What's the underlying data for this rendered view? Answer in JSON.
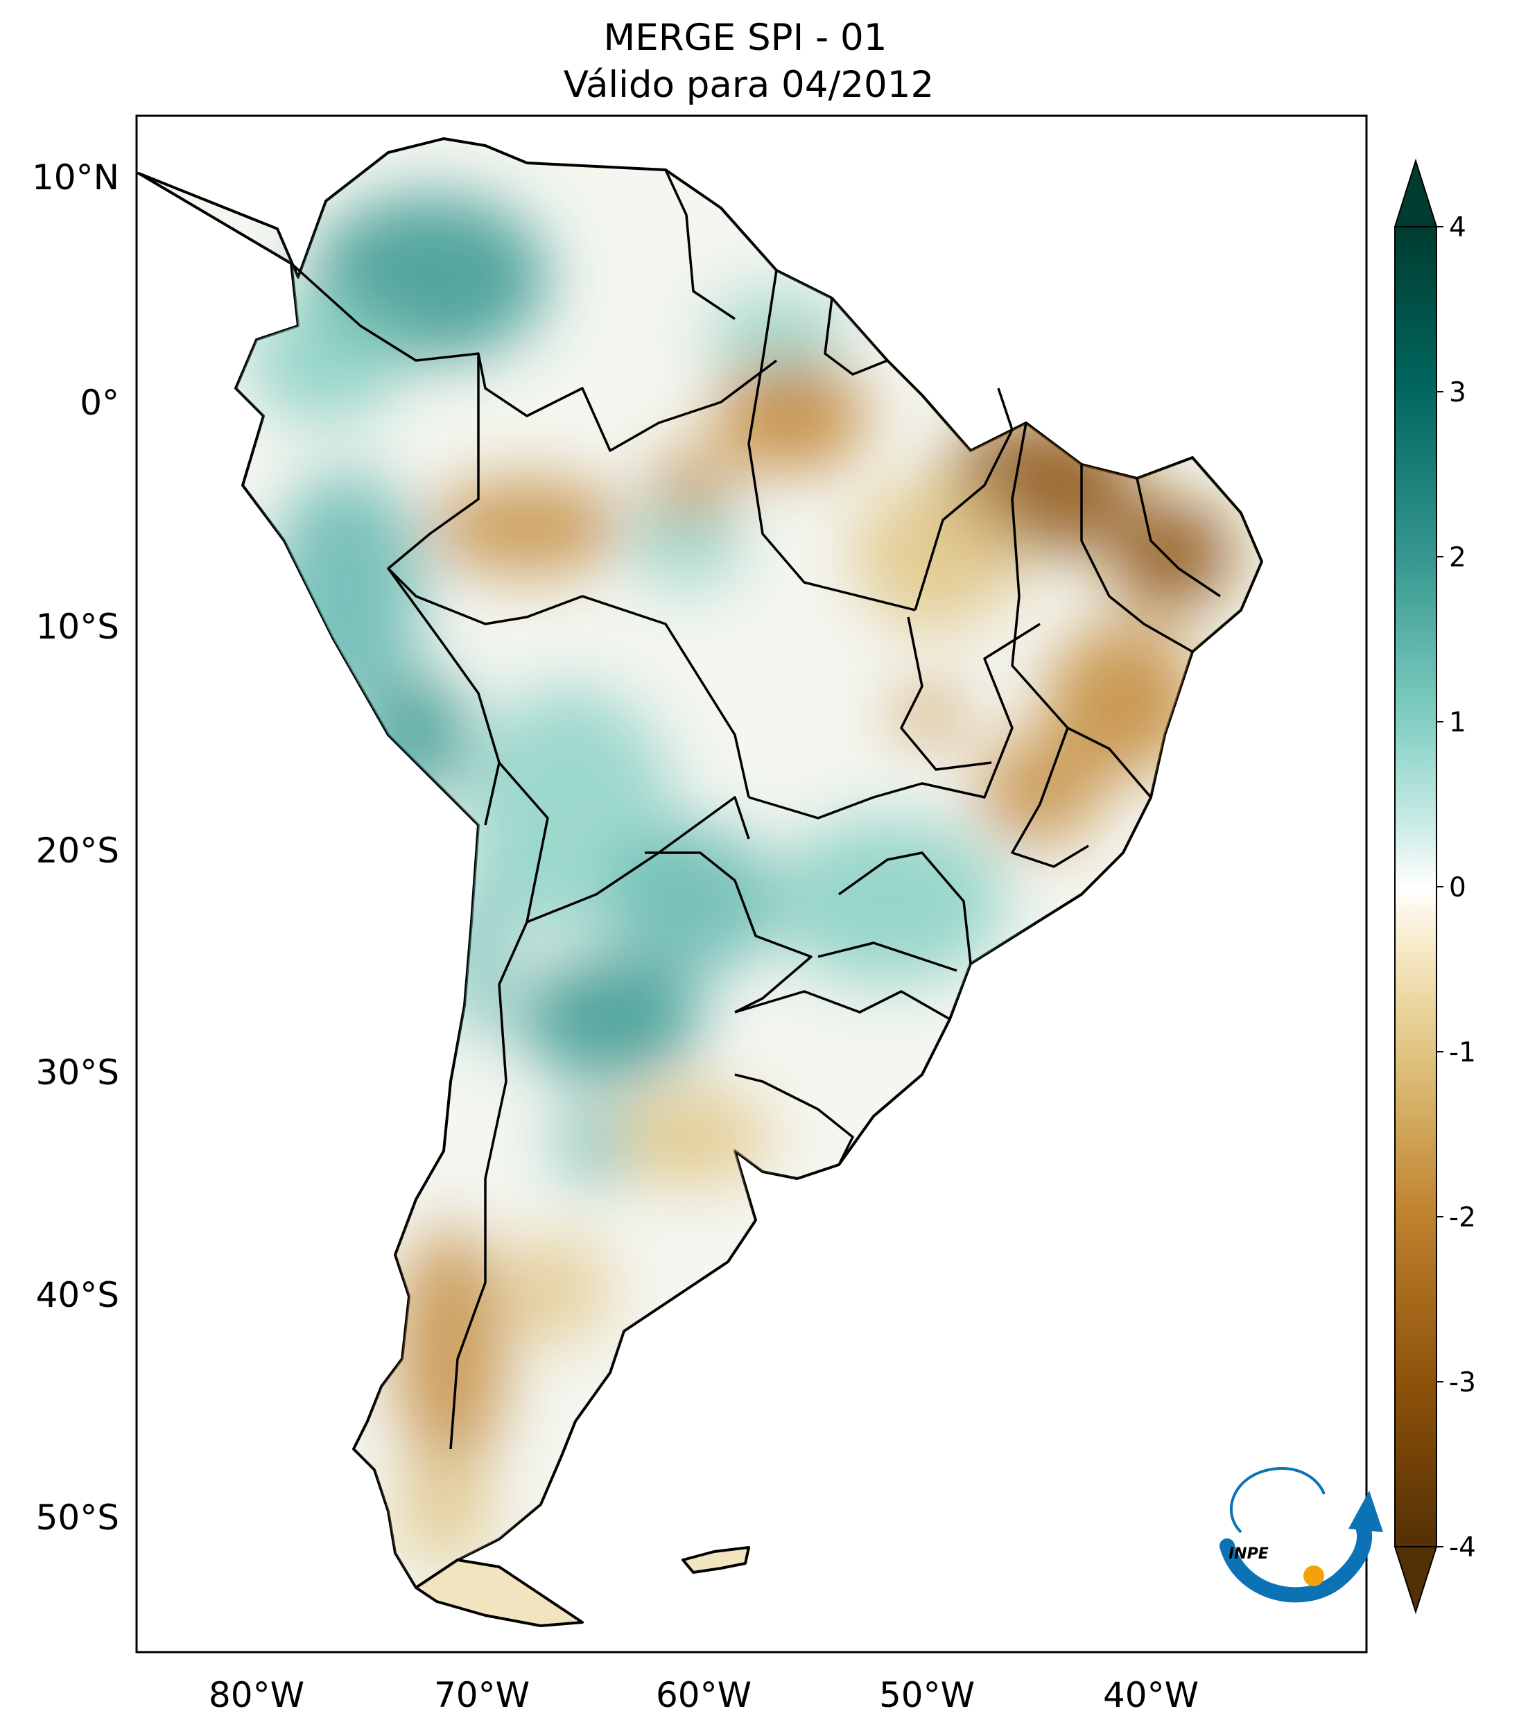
{
  "title": {
    "line1": "MERGE   SPI - 01",
    "line2": "Válido para 04/2012"
  },
  "map": {
    "lat_ticks": [
      "10°N",
      "0°",
      "10°S",
      "20°S",
      "30°S",
      "40°S",
      "50°S"
    ],
    "lon_ticks": [
      "80°W",
      "70°W",
      "60°W",
      "50°W",
      "40°W"
    ],
    "colorbar": {
      "ticks": [
        "4",
        "3",
        "2",
        "1",
        "0",
        "-1",
        "-2",
        "-3",
        "-4"
      ],
      "range": [
        -4,
        4
      ],
      "extend": "both",
      "colors": {
        "max": "#003c30",
        "wet_mid": "#35978f",
        "wet_light": "#c7eae5",
        "neutral": "#ffffff",
        "dry_light": "#f6e8c3",
        "dry_mid": "#bf812d",
        "min": "#543005"
      }
    },
    "logo": {
      "text": "INPE",
      "colors": {
        "arrow": "#0b72b5",
        "dot": "#f5a10b"
      }
    }
  }
}
